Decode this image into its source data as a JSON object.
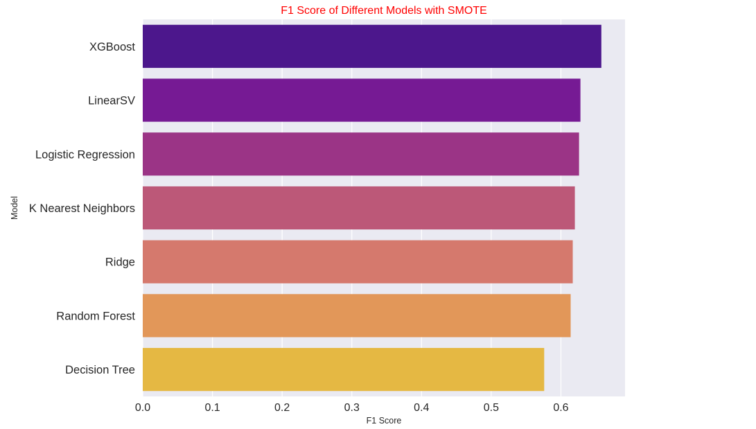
{
  "chart_data": {
    "type": "bar",
    "orientation": "horizontal",
    "title": "F1 Score of Different Models with SMOTE",
    "title_color": "#ff0000",
    "xlabel": "F1 Score",
    "ylabel": "Model",
    "xlim": [
      0,
      0.692
    ],
    "xticks": [
      "0.0",
      "0.1",
      "0.2",
      "0.3",
      "0.4",
      "0.5",
      "0.6"
    ],
    "grid": true,
    "background_color": "#eaeaf2",
    "categories": [
      "XGBoost",
      "LinearSV",
      "Logistic Regression",
      "K Nearest Neighbors",
      "Ridge",
      "Random Forest",
      "Decision Tree"
    ],
    "values": [
      0.658,
      0.628,
      0.626,
      0.62,
      0.617,
      0.614,
      0.576
    ],
    "colors": [
      "#4c178c",
      "#761a94",
      "#9b3486",
      "#bc5878",
      "#d5796d",
      "#e29759",
      "#e5b843"
    ]
  }
}
